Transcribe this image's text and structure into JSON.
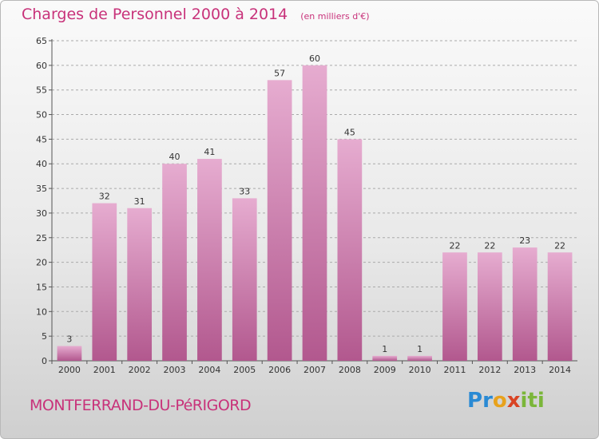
{
  "header": {
    "title": "Charges de Personnel 2000 à 2014",
    "subtitle": "(en milliers d'€)"
  },
  "footer": {
    "commune": "MONTFERRAND-DU-PéRIGORD",
    "logo": {
      "letters": [
        "P",
        "r",
        "o",
        "x",
        "i",
        "t",
        "i"
      ],
      "colors": [
        "#2a8ad4",
        "#2a8ad4",
        "#e8a21c",
        "#d94424",
        "#7bb63a",
        "#7bb63a",
        "#7bb63a"
      ]
    }
  },
  "chart_data": {
    "type": "bar",
    "title": "Charges de Personnel 2000 à 2014",
    "subtitle": "(en milliers d'€)",
    "categories": [
      "2000",
      "2001",
      "2002",
      "2003",
      "2004",
      "2005",
      "2006",
      "2007",
      "2008",
      "2009",
      "2010",
      "2011",
      "2012",
      "2013",
      "2014"
    ],
    "values": [
      3,
      32,
      31,
      40,
      41,
      33,
      57,
      60,
      45,
      1,
      1,
      22,
      22,
      23,
      22
    ],
    "ylim": [
      0,
      65
    ],
    "yticks": [
      0,
      5,
      10,
      15,
      20,
      25,
      30,
      35,
      40,
      45,
      50,
      55,
      60,
      65
    ],
    "grid": true,
    "legend": "none",
    "colors": {
      "bar_light": "#e6acd0",
      "bar_dark": "#b2588e",
      "grid": "#aaaaaa",
      "accent": "#c8327a"
    }
  }
}
